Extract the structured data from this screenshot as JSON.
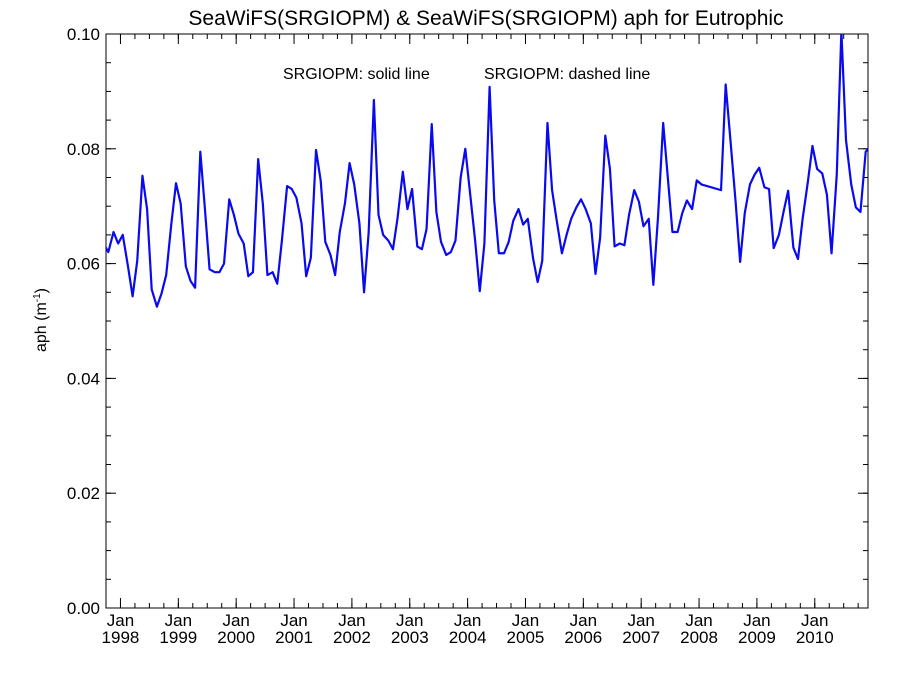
{
  "chart_data": {
    "type": "line",
    "title": "SeaWiFS(SRGIOPM) & SeaWiFS(SRGIOPM)  aph for Eutrophic",
    "annotations": [
      "SRGIOPM: solid line",
      "SRGIOPM: dashed line"
    ],
    "ylabel": "aph (m",
    "ylabel_unit_sup": "-1",
    "ylabel_close": ")",
    "xlabel": "",
    "xlim": [
      1997.75,
      2010.92
    ],
    "ylim": [
      0.0,
      0.1
    ],
    "yticks": [
      {
        "value": 0.0,
        "label": "0.00"
      },
      {
        "value": 0.02,
        "label": "0.02"
      },
      {
        "value": 0.04,
        "label": "0.04"
      },
      {
        "value": 0.06,
        "label": "0.06"
      },
      {
        "value": 0.08,
        "label": "0.08"
      },
      {
        "value": 0.1,
        "label": "0.10"
      }
    ],
    "xticks": [
      {
        "value": 1998.0,
        "month": "Jan",
        "year": "1998"
      },
      {
        "value": 1999.0,
        "month": "Jan",
        "year": "1999"
      },
      {
        "value": 2000.0,
        "month": "Jan",
        "year": "2000"
      },
      {
        "value": 2001.0,
        "month": "Jan",
        "year": "2001"
      },
      {
        "value": 2002.0,
        "month": "Jan",
        "year": "2002"
      },
      {
        "value": 2003.0,
        "month": "Jan",
        "year": "2003"
      },
      {
        "value": 2004.0,
        "month": "Jan",
        "year": "2004"
      },
      {
        "value": 2005.0,
        "month": "Jan",
        "year": "2005"
      },
      {
        "value": 2006.0,
        "month": "Jan",
        "year": "2006"
      },
      {
        "value": 2007.0,
        "month": "Jan",
        "year": "2007"
      },
      {
        "value": 2008.0,
        "month": "Jan",
        "year": "2008"
      },
      {
        "value": 2009.0,
        "month": "Jan",
        "year": "2009"
      },
      {
        "value": 2010.0,
        "month": "Jan",
        "year": "2010"
      }
    ],
    "grid": false,
    "series": [
      {
        "color": "#0a0aee",
        "style": "solid",
        "x": [
          1997.71,
          1997.79,
          1997.88,
          1997.96,
          1998.04,
          1998.13,
          1998.21,
          1998.29,
          1998.38,
          1998.46,
          1998.54,
          1998.63,
          1998.71,
          1998.79,
          1998.88,
          1998.96,
          1999.04,
          1999.13,
          1999.21,
          1999.29,
          1999.38,
          1999.46,
          1999.54,
          1999.63,
          1999.71,
          1999.79,
          1999.88,
          1999.96,
          2000.04,
          2000.13,
          2000.21,
          2000.29,
          2000.38,
          2000.46,
          2000.54,
          2000.63,
          2000.71,
          2000.79,
          2000.88,
          2000.96,
          2001.04,
          2001.13,
          2001.21,
          2001.29,
          2001.38,
          2001.46,
          2001.54,
          2001.63,
          2001.71,
          2001.79,
          2001.88,
          2001.96,
          2002.04,
          2002.13,
          2002.21,
          2002.29,
          2002.38,
          2002.46,
          2002.54,
          2002.63,
          2002.71,
          2002.79,
          2002.88,
          2002.96,
          2003.04,
          2003.13,
          2003.21,
          2003.29,
          2003.38,
          2003.46,
          2003.54,
          2003.63,
          2003.71,
          2003.79,
          2003.88,
          2003.96,
          2004.04,
          2004.13,
          2004.21,
          2004.29,
          2004.38,
          2004.46,
          2004.54,
          2004.63,
          2004.71,
          2004.79,
          2004.88,
          2004.96,
          2005.04,
          2005.13,
          2005.21,
          2005.29,
          2005.38,
          2005.46,
          2005.54,
          2005.63,
          2005.71,
          2005.79,
          2005.88,
          2005.96,
          2006.04,
          2006.13,
          2006.21,
          2006.29,
          2006.38,
          2006.46,
          2006.54,
          2006.63,
          2006.71,
          2006.79,
          2006.88,
          2006.96,
          2007.04,
          2007.13,
          2007.21,
          2007.29,
          2007.38,
          2007.46,
          2007.54,
          2007.63,
          2007.71,
          2007.79,
          2007.88,
          2007.96,
          2008.04,
          2008.38,
          2008.46,
          2008.54,
          2008.63,
          2008.71,
          2008.79,
          2008.88,
          2008.96,
          2009.04,
          2009.13,
          2009.21,
          2009.29,
          2009.38,
          2009.46,
          2009.54,
          2009.63,
          2009.71,
          2009.79,
          2009.88,
          2009.96,
          2010.04,
          2010.13,
          2010.21,
          2010.29,
          2010.38,
          2010.46,
          2010.54,
          2010.63,
          2010.71,
          2010.79,
          2010.88,
          2010.96
        ],
        "y": [
          0.0635,
          0.062,
          0.0655,
          0.0635,
          0.065,
          0.0595,
          0.0543,
          0.0605,
          0.0753,
          0.0695,
          0.0555,
          0.0525,
          0.0548,
          0.058,
          0.067,
          0.074,
          0.0705,
          0.0595,
          0.057,
          0.0558,
          0.0795,
          0.0695,
          0.059,
          0.0585,
          0.0585,
          0.06,
          0.0712,
          0.0685,
          0.0652,
          0.0635,
          0.0578,
          0.0585,
          0.0782,
          0.0705,
          0.058,
          0.0585,
          0.0565,
          0.064,
          0.0735,
          0.073,
          0.0715,
          0.067,
          0.0578,
          0.061,
          0.0798,
          0.0745,
          0.0638,
          0.0615,
          0.058,
          0.0655,
          0.0705,
          0.0775,
          0.0738,
          0.067,
          0.055,
          0.0655,
          0.0885,
          0.0685,
          0.065,
          0.064,
          0.0625,
          0.068,
          0.076,
          0.0695,
          0.073,
          0.063,
          0.0625,
          0.066,
          0.0843,
          0.069,
          0.0638,
          0.0615,
          0.062,
          0.064,
          0.075,
          0.08,
          0.0725,
          0.064,
          0.0552,
          0.0635,
          0.0908,
          0.071,
          0.0618,
          0.0618,
          0.0638,
          0.0675,
          0.0695,
          0.0668,
          0.0678,
          0.061,
          0.0568,
          0.0605,
          0.0845,
          0.0728,
          0.0675,
          0.0618,
          0.065,
          0.0678,
          0.0698,
          0.0712,
          0.0695,
          0.067,
          0.0582,
          0.0645,
          0.0823,
          0.0765,
          0.063,
          0.0635,
          0.0632,
          0.0685,
          0.0728,
          0.0708,
          0.0665,
          0.0678,
          0.0563,
          0.068,
          0.0845,
          0.075,
          0.0655,
          0.0655,
          0.0688,
          0.071,
          0.0695,
          0.0745,
          0.0738,
          0.0728,
          0.0912,
          0.0818,
          0.071,
          0.0603,
          0.0688,
          0.0738,
          0.0755,
          0.0767,
          0.0733,
          0.073,
          0.0627,
          0.065,
          0.069,
          0.0727,
          0.0628,
          0.0608,
          0.0678,
          0.0742,
          0.0805,
          0.0765,
          0.0757,
          0.072,
          0.0618,
          0.0755,
          0.1005,
          0.0815,
          0.0738,
          0.0698,
          0.069,
          0.0795,
          0.0803
        ]
      }
    ]
  }
}
